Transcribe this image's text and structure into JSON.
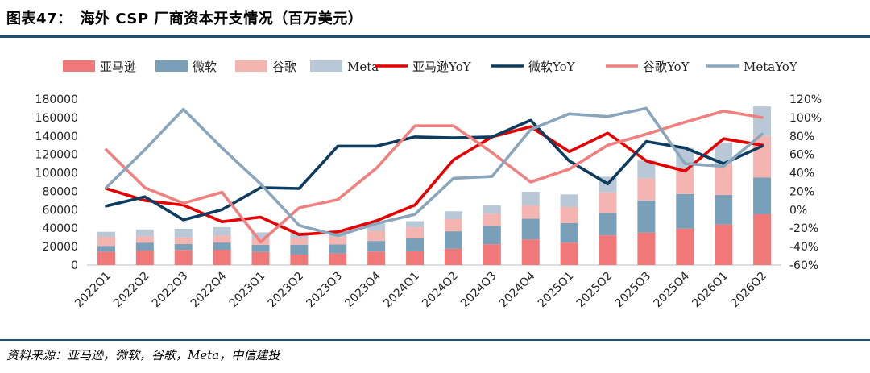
{
  "header": {
    "figure_no": "图表47：",
    "title": "海外 CSP 厂商资本开支情况（百万美元）"
  },
  "footer": {
    "source": "资料来源：亚马逊，微软，谷歌，Meta，中信建投"
  },
  "colors": {
    "amazon_bar": "#f07878",
    "microsoft_bar": "#7a9fb8",
    "google_bar": "#f4b4b0",
    "meta_bar": "#b8c8d6",
    "amazon_line": "#e60000",
    "microsoft_line": "#0d3c5e",
    "google_line": "#f08080",
    "meta_line": "#8aa6bc",
    "rule": "#1f4e79"
  },
  "chart_data": {
    "type": "bar",
    "categories": [
      "2022Q1",
      "2022Q2",
      "2022Q3",
      "2022Q4",
      "2023Q1",
      "2023Q2",
      "2023Q3",
      "2023Q4",
      "2024Q1",
      "2024Q2",
      "2024Q3",
      "2024Q4",
      "2025Q1",
      "2025Q2",
      "2025Q3",
      "2025Q4",
      "2026Q1",
      "2026Q2"
    ],
    "stacked_bars": [
      {
        "name": "亚马逊",
        "values": [
          14500,
          15700,
          16400,
          16600,
          14200,
          11400,
          12500,
          14600,
          14900,
          17600,
          22600,
          27800,
          24300,
          32200,
          35100,
          39500,
          44000,
          55000
        ]
      },
      {
        "name": "微软",
        "values": [
          6300,
          8600,
          6300,
          7800,
          7800,
          10700,
          9900,
          11500,
          14000,
          19000,
          20000,
          22600,
          21400,
          24200,
          34900,
          37500,
          32000,
          40000
        ]
      },
      {
        "name": "谷歌",
        "values": [
          9800,
          6800,
          7300,
          7600,
          6300,
          6900,
          8100,
          11000,
          12000,
          13200,
          13100,
          14300,
          17200,
          22400,
          24000,
          28000,
          33000,
          45000
        ]
      },
      {
        "name": "Meta",
        "values": [
          5500,
          7500,
          9400,
          9200,
          7100,
          6400,
          6800,
          7900,
          6700,
          8500,
          9200,
          14800,
          13700,
          17000,
          19400,
          22000,
          24000,
          32000
        ]
      }
    ],
    "yoy_lines": [
      {
        "name": "亚马逊YoY",
        "values": [
          23,
          10,
          5,
          -13,
          -8,
          -27,
          -24,
          -12,
          5,
          54,
          79,
          90,
          63,
          83,
          53,
          42,
          77,
          70
        ]
      },
      {
        "name": "微软YoY",
        "values": [
          4,
          14,
          -11,
          0,
          24,
          23,
          69,
          69,
          79,
          78,
          79,
          97,
          53,
          28,
          74,
          67,
          50,
          69
        ]
      },
      {
        "name": "谷歌YoY",
        "values": [
          65,
          24,
          7,
          19,
          -35,
          2,
          11,
          45,
          91,
          91,
          62,
          30,
          44,
          70,
          82,
          95,
          107,
          100
        ]
      },
      {
        "name": "MetaYoY",
        "values": [
          24,
          65,
          109,
          67,
          28,
          -17,
          -28,
          -15,
          -5,
          34,
          36,
          87,
          104,
          101,
          110,
          50,
          47,
          82
        ]
      }
    ],
    "y_left": {
      "min": 0,
      "max": 180000,
      "ticks": [
        "0",
        "20000",
        "40000",
        "60000",
        "80000",
        "100000",
        "120000",
        "140000",
        "160000",
        "180000"
      ]
    },
    "y_right": {
      "min": -60,
      "max": 120,
      "ticks": [
        "-60%",
        "-40%",
        "-20%",
        "0%",
        "20%",
        "40%",
        "60%",
        "80%",
        "100%",
        "120%"
      ]
    },
    "legend": [
      "亚马逊",
      "微软",
      "谷歌",
      "Meta",
      "亚马逊YoY",
      "微软YoY",
      "谷歌YoY",
      "MetaYoY"
    ],
    "legend_position": "top",
    "grid": false
  }
}
